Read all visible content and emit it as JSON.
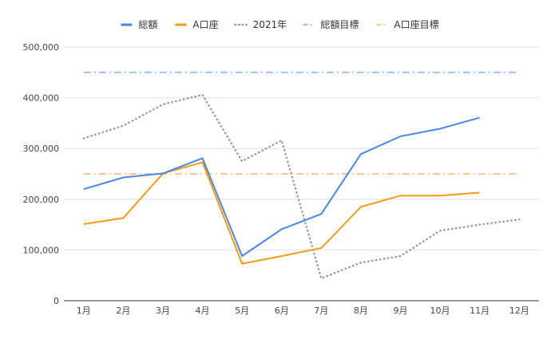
{
  "chart_data": {
    "type": "line",
    "categories": [
      "1月",
      "2月",
      "3月",
      "4月",
      "5月",
      "6月",
      "7月",
      "8月",
      "9月",
      "10月",
      "11月",
      "12月"
    ],
    "ylim": [
      0,
      500000
    ],
    "yticks": [
      0,
      100000,
      200000,
      300000,
      400000,
      500000
    ],
    "ytick_labels": [
      "0",
      "100,000",
      "200,000",
      "300,000",
      "400,000",
      "500,000"
    ],
    "grid": true,
    "legend_position": "top",
    "series": [
      {
        "name": "総額",
        "style": "solid",
        "color": "#4a86e8",
        "values": [
          220000,
          243000,
          251000,
          281000,
          88000,
          141000,
          171000,
          289000,
          324000,
          339000,
          361000,
          null
        ]
      },
      {
        "name": "A口座",
        "style": "solid",
        "color": "#f29b14",
        "values": [
          151000,
          163000,
          251000,
          273000,
          73000,
          88000,
          104000,
          185000,
          207000,
          207000,
          213000,
          null
        ]
      },
      {
        "name": "2021年",
        "style": "dotted",
        "color": "#999999",
        "values": [
          320000,
          345000,
          387000,
          406000,
          275000,
          316000,
          44000,
          75000,
          88000,
          138000,
          150000,
          160000
        ]
      },
      {
        "name": "総額目標",
        "style": "dashdot",
        "color": "#9fc0f5",
        "values": [
          450000,
          450000,
          450000,
          450000,
          450000,
          450000,
          450000,
          450000,
          450000,
          450000,
          450000,
          450000
        ]
      },
      {
        "name": "A口座目標",
        "style": "dashdot",
        "color": "#fbc893",
        "values": [
          250000,
          250000,
          250000,
          250000,
          250000,
          250000,
          250000,
          250000,
          250000,
          250000,
          250000,
          250000
        ]
      }
    ]
  }
}
